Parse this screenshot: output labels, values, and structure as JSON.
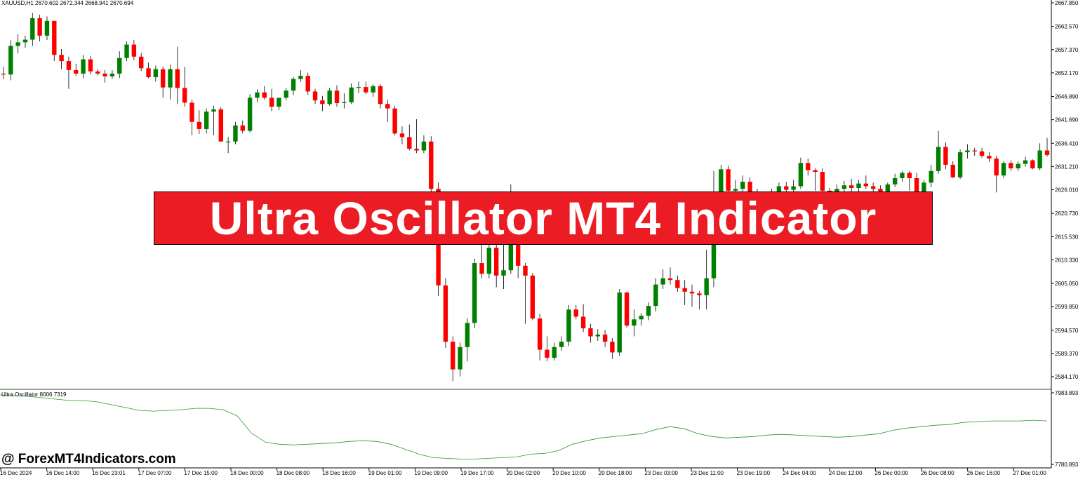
{
  "window": {
    "symbol_header": "XAUUSD,H1  2670.602 2672.344 2668.941 2670.694"
  },
  "oscillator": {
    "label": "Ultra Oscillator 8006.7319",
    "scale_top": "7983.8934",
    "scale_bottom": "7780.8935",
    "line_color": "#2a9a2a"
  },
  "banner": {
    "title": "Ultra Oscillator MT4 Indicator",
    "background": "#ec1c24"
  },
  "watermark": "@ ForexMT4Indicators.com",
  "colors": {
    "bull": "#008000",
    "bear": "#ff0000",
    "wick": "#000000"
  },
  "chart_data": {
    "type": "candlestick",
    "price_axis_labels": [
      "2667.850",
      "2662.570",
      "2657.370",
      "2652.170",
      "2646.890",
      "2641.690",
      "2636.410",
      "2631.210",
      "2626.010",
      "2620.730",
      "2615.530",
      "2610.330",
      "2605.050",
      "2599.850",
      "2594.570",
      "2589.370",
      "2584.170"
    ],
    "time_axis_labels": [
      "16 Dec 2024",
      "16 Dec 14:00",
      "16 Dec 23:01",
      "17 Dec 07:00",
      "17 Dec 15:00",
      "18 Dec 00:00",
      "18 Dec 08:00",
      "18 Dec 16:00",
      "19 Dec 01:00",
      "19 Dec 09:00",
      "19 Dec 17:00",
      "20 Dec 02:00",
      "20 Dec 10:00",
      "20 Dec 18:00",
      "23 Dec 03:00",
      "23 Dec 11:00",
      "23 Dec 19:00",
      "24 Dec 04:00",
      "24 Dec 12:00",
      "26 Dec 00:00",
      "26 Dec 08:00",
      "26 Dec 16:00",
      "27 Dec 01:00"
    ],
    "candles_ohlc": [
      [
        2652.0,
        2653.5,
        2650.8,
        2651.8
      ],
      [
        2651.8,
        2659.5,
        2650.5,
        2658.2
      ],
      [
        2658.2,
        2660.8,
        2656.5,
        2659.0
      ],
      [
        2659.0,
        2660.5,
        2657.8,
        2659.6
      ],
      [
        2659.6,
        2665.6,
        2658.2,
        2664.4
      ],
      [
        2664.4,
        2665.2,
        2659.2,
        2660.5
      ],
      [
        2660.5,
        2664.8,
        2659.5,
        2663.8
      ],
      [
        2663.8,
        2663.2,
        2654.8,
        2656.2
      ],
      [
        2656.2,
        2657.5,
        2653.0,
        2654.8
      ],
      [
        2654.8,
        2655.8,
        2648.6,
        2652.8
      ],
      [
        2652.8,
        2654.2,
        2651.5,
        2652.0
      ],
      [
        2652.0,
        2656.2,
        2651.0,
        2655.2
      ],
      [
        2655.2,
        2656.0,
        2651.8,
        2652.5
      ],
      [
        2652.5,
        2653.0,
        2651.6,
        2652.0
      ],
      [
        2652.0,
        2652.8,
        2650.0,
        2651.4
      ],
      [
        2651.4,
        2652.8,
        2650.8,
        2652.0
      ],
      [
        2652.0,
        2657.0,
        2651.0,
        2655.5
      ],
      [
        2655.5,
        2659.2,
        2654.8,
        2658.5
      ],
      [
        2658.5,
        2659.5,
        2655.0,
        2655.8
      ],
      [
        2655.8,
        2656.6,
        2652.6,
        2653.2
      ],
      [
        2653.2,
        2654.5,
        2651.0,
        2651.2
      ],
      [
        2651.2,
        2653.8,
        2650.2,
        2653.0
      ],
      [
        2653.0,
        2653.6,
        2646.6,
        2648.9
      ],
      [
        2648.9,
        2654.0,
        2646.2,
        2653.0
      ],
      [
        2653.0,
        2658.0,
        2645.2,
        2648.8
      ],
      [
        2648.8,
        2653.5,
        2644.6,
        2645.5
      ],
      [
        2645.5,
        2646.2,
        2638.2,
        2641.2
      ],
      [
        2641.2,
        2643.8,
        2638.5,
        2639.6
      ],
      [
        2639.6,
        2644.2,
        2638.6,
        2643.5
      ],
      [
        2643.5,
        2644.8,
        2638.2,
        2644.0
      ],
      [
        2644.0,
        2644.5,
        2638.2,
        2636.8
      ],
      [
        2636.8,
        2637.8,
        2634.2,
        2636.8
      ],
      [
        2636.8,
        2641.2,
        2636.2,
        2640.4
      ],
      [
        2640.4,
        2641.5,
        2638.6,
        2639.2
      ],
      [
        2639.2,
        2647.4,
        2638.8,
        2646.6
      ],
      [
        2646.6,
        2648.5,
        2645.6,
        2647.8
      ],
      [
        2647.8,
        2649.2,
        2646.2,
        2646.6
      ],
      [
        2646.6,
        2648.6,
        2643.6,
        2644.6
      ],
      [
        2644.6,
        2646.2,
        2643.8,
        2646.6
      ],
      [
        2646.6,
        2648.8,
        2646.0,
        2648.2
      ],
      [
        2648.2,
        2651.2,
        2647.2,
        2650.8
      ],
      [
        2650.8,
        2652.8,
        2650.2,
        2651.5
      ],
      [
        2651.5,
        2652.2,
        2647.2,
        2648.0
      ],
      [
        2648.0,
        2648.6,
        2645.2,
        2646.0
      ],
      [
        2646.0,
        2647.0,
        2643.6,
        2645.2
      ],
      [
        2645.2,
        2648.8,
        2644.8,
        2648.2
      ],
      [
        2648.2,
        2649.4,
        2644.6,
        2645.4
      ],
      [
        2645.4,
        2647.6,
        2644.2,
        2645.6
      ],
      [
        2645.6,
        2649.8,
        2645.2,
        2648.9
      ],
      [
        2648.9,
        2650.2,
        2647.6,
        2649.0
      ],
      [
        2649.0,
        2650.2,
        2647.4,
        2647.8
      ],
      [
        2647.8,
        2649.6,
        2646.8,
        2649.2
      ],
      [
        2649.2,
        2649.6,
        2644.2,
        2645.2
      ],
      [
        2645.2,
        2646.2,
        2641.2,
        2644.2
      ],
      [
        2644.2,
        2644.8,
        2638.2,
        2638.6
      ],
      [
        2638.6,
        2640.2,
        2636.2,
        2637.8
      ],
      [
        2637.8,
        2640.6,
        2634.8,
        2635.2
      ],
      [
        2635.2,
        2641.8,
        2634.2,
        2634.8
      ],
      [
        2634.8,
        2638.2,
        2634.2,
        2636.8
      ],
      [
        2636.8,
        2638.0,
        2625.4,
        2626.2
      ],
      [
        2626.2,
        2627.6,
        2602.2,
        2604.6
      ],
      [
        2604.6,
        2606.2,
        2590.6,
        2592.0
      ],
      [
        2592.0,
        2593.2,
        2583.2,
        2585.8
      ],
      [
        2585.8,
        2591.8,
        2584.2,
        2590.8
      ],
      [
        2590.8,
        2597.2,
        2587.6,
        2596.2
      ],
      [
        2596.2,
        2610.6,
        2595.0,
        2609.6
      ],
      [
        2609.6,
        2614.2,
        2606.2,
        2607.2
      ],
      [
        2607.2,
        2614.2,
        2606.2,
        2613.0
      ],
      [
        2613.0,
        2614.2,
        2604.2,
        2606.8
      ],
      [
        2606.8,
        2614.6,
        2603.8,
        2608.0
      ],
      [
        2608.0,
        2627.2,
        2607.2,
        2614.2
      ],
      [
        2614.2,
        2614.8,
        2606.2,
        2609.0
      ],
      [
        2609.0,
        2609.6,
        2596.0,
        2606.8
      ],
      [
        2606.8,
        2607.4,
        2596.8,
        2597.2
      ],
      [
        2597.2,
        2598.2,
        2587.8,
        2590.2
      ],
      [
        2590.2,
        2593.2,
        2587.6,
        2588.4
      ],
      [
        2588.4,
        2591.8,
        2587.8,
        2590.8
      ],
      [
        2590.8,
        2593.2,
        2590.0,
        2592.0
      ],
      [
        2592.0,
        2600.2,
        2591.0,
        2599.2
      ],
      [
        2599.2,
        2600.2,
        2597.0,
        2597.6
      ],
      [
        2597.6,
        2600.4,
        2594.2,
        2595.0
      ],
      [
        2595.0,
        2596.0,
        2591.8,
        2593.2
      ],
      [
        2593.2,
        2594.8,
        2592.2,
        2593.6
      ],
      [
        2593.6,
        2594.6,
        2590.8,
        2592.0
      ],
      [
        2592.0,
        2592.8,
        2588.2,
        2589.6
      ],
      [
        2589.6,
        2603.8,
        2588.8,
        2603.0
      ],
      [
        2603.0,
        2603.2,
        2595.2,
        2595.6
      ],
      [
        2595.6,
        2599.2,
        2593.2,
        2597.0
      ],
      [
        2597.0,
        2598.4,
        2595.6,
        2597.8
      ],
      [
        2597.8,
        2600.8,
        2596.8,
        2600.0
      ],
      [
        2600.0,
        2606.2,
        2598.8,
        2604.8
      ],
      [
        2604.8,
        2608.2,
        2603.8,
        2606.2
      ],
      [
        2606.2,
        2608.6,
        2604.8,
        2605.8
      ],
      [
        2605.8,
        2606.8,
        2603.2,
        2604.0
      ],
      [
        2604.0,
        2605.8,
        2600.2,
        2603.2
      ],
      [
        2603.2,
        2604.8,
        2599.8,
        2602.8
      ],
      [
        2602.8,
        2603.4,
        2599.2,
        2602.4
      ],
      [
        2602.4,
        2612.6,
        2599.2,
        2606.2
      ],
      [
        2606.2,
        2630.2,
        2604.2,
        2625.2
      ],
      [
        2625.2,
        2631.6,
        2624.2,
        2630.6
      ],
      [
        2630.6,
        2631.4,
        2621.2,
        2625.8
      ],
      [
        2625.8,
        2628.2,
        2624.2,
        2626.2
      ],
      [
        2626.2,
        2629.2,
        2625.2,
        2627.8
      ],
      [
        2627.8,
        2628.8,
        2624.8,
        2625.2
      ],
      [
        2625.2,
        2626.2,
        2618.2,
        2620.2
      ],
      [
        2620.2,
        2623.8,
        2618.8,
        2621.0
      ],
      [
        2621.0,
        2626.2,
        2620.6,
        2625.6
      ],
      [
        2625.6,
        2627.6,
        2624.8,
        2626.8
      ],
      [
        2626.8,
        2627.8,
        2625.6,
        2626.0
      ],
      [
        2626.0,
        2628.2,
        2624.2,
        2626.8
      ],
      [
        2626.8,
        2633.2,
        2626.2,
        2632.0
      ],
      [
        2632.0,
        2633.0,
        2629.2,
        2630.4
      ],
      [
        2630.4,
        2630.8,
        2625.8,
        2630.0
      ],
      [
        2630.0,
        2630.8,
        2624.2,
        2625.8
      ],
      [
        2625.8,
        2626.4,
        2621.2,
        2624.0
      ],
      [
        2624.0,
        2627.2,
        2623.2,
        2626.2
      ],
      [
        2626.2,
        2628.0,
        2625.2,
        2627.0
      ],
      [
        2627.0,
        2628.4,
        2625.6,
        2626.4
      ],
      [
        2626.4,
        2628.2,
        2625.6,
        2627.4
      ],
      [
        2627.4,
        2629.2,
        2626.2,
        2626.8
      ],
      [
        2626.8,
        2627.6,
        2624.4,
        2626.2
      ],
      [
        2626.2,
        2627.0,
        2624.0,
        2625.2
      ],
      [
        2625.2,
        2627.6,
        2624.6,
        2627.2
      ],
      [
        2627.2,
        2629.6,
        2626.6,
        2628.6
      ],
      [
        2628.6,
        2630.2,
        2627.8,
        2629.8
      ],
      [
        2629.8,
        2630.2,
        2625.8,
        2628.6
      ],
      [
        2628.6,
        2629.8,
        2621.4,
        2622.4
      ],
      [
        2622.4,
        2628.2,
        2621.6,
        2627.6
      ],
      [
        2627.6,
        2631.6,
        2626.6,
        2630.2
      ],
      [
        2630.2,
        2639.2,
        2629.6,
        2635.6
      ],
      [
        2635.6,
        2636.6,
        2630.6,
        2631.6
      ],
      [
        2631.6,
        2632.4,
        2628.6,
        2628.8
      ],
      [
        2628.8,
        2635.0,
        2628.4,
        2634.4
      ],
      [
        2634.4,
        2636.2,
        2633.0,
        2634.8
      ],
      [
        2634.8,
        2635.4,
        2633.6,
        2634.6
      ],
      [
        2634.6,
        2635.4,
        2633.2,
        2633.6
      ],
      [
        2633.6,
        2634.4,
        2632.2,
        2633.0
      ],
      [
        2633.0,
        2633.6,
        2625.4,
        2629.2
      ],
      [
        2629.2,
        2632.4,
        2628.6,
        2632.0
      ],
      [
        2632.0,
        2632.6,
        2630.2,
        2630.8
      ],
      [
        2630.8,
        2632.4,
        2630.2,
        2631.8
      ],
      [
        2631.8,
        2633.4,
        2631.2,
        2632.6
      ],
      [
        2632.6,
        2632.8,
        2630.6,
        2630.8
      ],
      [
        2630.8,
        2636.4,
        2630.4,
        2634.8
      ],
      [
        2634.8,
        2637.6,
        2633.4,
        2633.8
      ]
    ],
    "oscillator_values": [
      7978,
      7976,
      7974,
      7970,
      7966,
      7962,
      7962,
      7958,
      7950,
      7942,
      7934,
      7932,
      7934,
      7936,
      7940,
      7940,
      7936,
      7918,
      7870,
      7844,
      7838,
      7836,
      7838,
      7840,
      7842,
      7846,
      7848,
      7846,
      7838,
      7824,
      7810,
      7800,
      7798,
      7796,
      7796,
      7798,
      7800,
      7802,
      7810,
      7812,
      7820,
      7838,
      7848,
      7856,
      7860,
      7864,
      7868,
      7880,
      7888,
      7882,
      7868,
      7860,
      7856,
      7858,
      7860,
      7864,
      7866,
      7864,
      7862,
      7860,
      7858,
      7860,
      7864,
      7868,
      7878,
      7884,
      7888,
      7892,
      7894,
      7900,
      7902,
      7904,
      7904,
      7904,
      7906,
      7904
    ]
  }
}
